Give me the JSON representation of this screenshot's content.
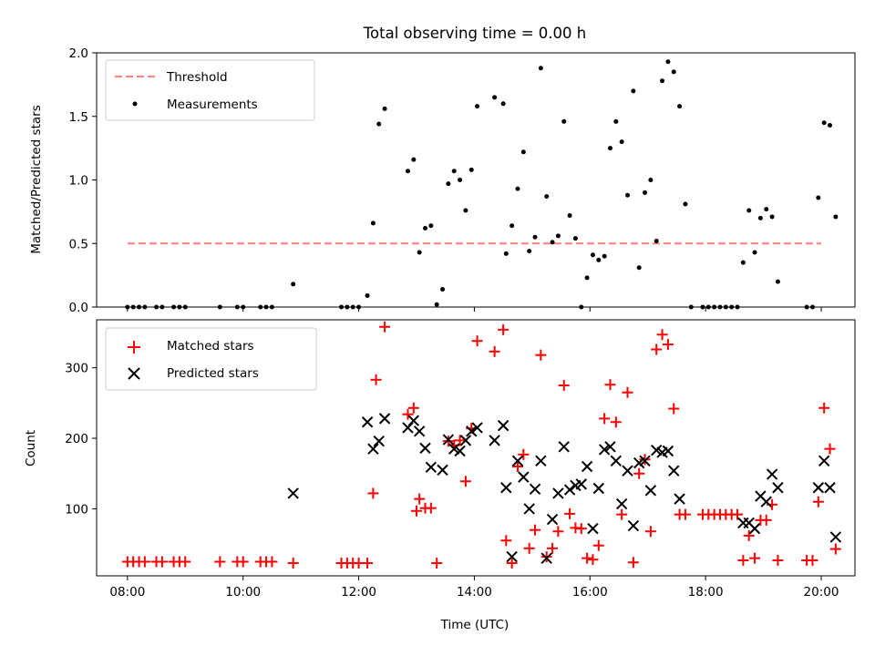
{
  "title": "Total observing time = 0.00 h",
  "colors": {
    "threshold": "#ff7f7f",
    "measurement": "#000000",
    "matched": "#ff0000",
    "predicted": "#000000"
  },
  "chart_data": [
    {
      "type": "scatter",
      "ylabel": "Matched/Predicted stars",
      "xlabel": "",
      "xlim": [
        "07:28",
        "20:35"
      ],
      "ylim": [
        0,
        2.0
      ],
      "yticks": [
        0.0,
        0.5,
        1.0,
        1.5,
        2.0
      ],
      "ytick_labels": [
        "0.0",
        "0.5",
        "1.0",
        "1.5",
        "2.0"
      ],
      "xticks": [
        "08:00",
        "10:00",
        "12:00",
        "14:00",
        "16:00",
        "18:00",
        "20:00"
      ],
      "show_xtick_labels": false,
      "legend": {
        "position": "top-left",
        "entries": [
          "Threshold",
          "Measurements"
        ]
      },
      "threshold": {
        "name": "Threshold",
        "y": 0.5,
        "x": [
          "08:00",
          "20:00"
        ],
        "style": "dashed"
      },
      "series": [
        {
          "name": "Measurements",
          "marker": "dot",
          "points": [
            [
              "08:00",
              0
            ],
            [
              "08:06",
              0
            ],
            [
              "08:12",
              0
            ],
            [
              "08:18",
              0
            ],
            [
              "08:30",
              0
            ],
            [
              "08:36",
              0
            ],
            [
              "08:48",
              0
            ],
            [
              "08:54",
              0
            ],
            [
              "09:00",
              0
            ],
            [
              "09:36",
              0
            ],
            [
              "09:54",
              0
            ],
            [
              "10:00",
              0
            ],
            [
              "10:18",
              0
            ],
            [
              "10:24",
              0
            ],
            [
              "10:30",
              0
            ],
            [
              "10:52",
              0.18
            ],
            [
              "11:42",
              0
            ],
            [
              "11:48",
              0
            ],
            [
              "11:54",
              0
            ],
            [
              "12:00",
              0
            ],
            [
              "12:09",
              0.09
            ],
            [
              "12:15",
              0.66
            ],
            [
              "12:21",
              1.44
            ],
            [
              "12:27",
              1.56
            ],
            [
              "12:51",
              1.07
            ],
            [
              "12:57",
              1.16
            ],
            [
              "13:03",
              0.43
            ],
            [
              "13:09",
              0.62
            ],
            [
              "13:15",
              0.64
            ],
            [
              "13:21",
              0.02
            ],
            [
              "13:27",
              0.14
            ],
            [
              "13:33",
              0.97
            ],
            [
              "13:39",
              1.07
            ],
            [
              "13:45",
              1.0
            ],
            [
              "13:51",
              0.76
            ],
            [
              "13:57",
              1.08
            ],
            [
              "14:03",
              1.58
            ],
            [
              "14:21",
              1.65
            ],
            [
              "14:30",
              1.6
            ],
            [
              "14:33",
              0.42
            ],
            [
              "14:39",
              0.64
            ],
            [
              "14:45",
              0.93
            ],
            [
              "14:51",
              1.22
            ],
            [
              "14:57",
              0.44
            ],
            [
              "15:03",
              0.55
            ],
            [
              "15:09",
              1.88
            ],
            [
              "15:15",
              0.87
            ],
            [
              "15:21",
              0.51
            ],
            [
              "15:27",
              0.56
            ],
            [
              "15:33",
              1.46
            ],
            [
              "15:39",
              0.72
            ],
            [
              "15:45",
              0.54
            ],
            [
              "15:51",
              0.0
            ],
            [
              "15:57",
              0.23
            ],
            [
              "16:03",
              0.41
            ],
            [
              "16:09",
              0.37
            ],
            [
              "16:15",
              0.4
            ],
            [
              "16:21",
              1.25
            ],
            [
              "16:27",
              1.46
            ],
            [
              "16:33",
              1.3
            ],
            [
              "16:39",
              0.88
            ],
            [
              "16:45",
              1.7
            ],
            [
              "16:51",
              0.31
            ],
            [
              "16:57",
              0.9
            ],
            [
              "17:03",
              1.0
            ],
            [
              "17:09",
              0.52
            ],
            [
              "17:15",
              1.78
            ],
            [
              "17:21",
              1.93
            ],
            [
              "17:27",
              1.85
            ],
            [
              "17:33",
              1.58
            ],
            [
              "17:39",
              0.81
            ],
            [
              "17:45",
              0.0
            ],
            [
              "17:57",
              0
            ],
            [
              "18:03",
              0
            ],
            [
              "18:09",
              0
            ],
            [
              "18:15",
              0
            ],
            [
              "18:21",
              0
            ],
            [
              "18:27",
              0
            ],
            [
              "18:33",
              0
            ],
            [
              "18:39",
              0.35
            ],
            [
              "18:45",
              0.76
            ],
            [
              "18:51",
              0.43
            ],
            [
              "18:57",
              0.7
            ],
            [
              "19:03",
              0.77
            ],
            [
              "19:09",
              0.71
            ],
            [
              "19:15",
              0.2
            ],
            [
              "19:45",
              0
            ],
            [
              "19:51",
              0
            ],
            [
              "19:57",
              0.86
            ],
            [
              "20:03",
              1.45
            ],
            [
              "20:09",
              1.43
            ],
            [
              "20:15",
              0.71
            ]
          ]
        }
      ]
    },
    {
      "type": "scatter",
      "ylabel": "Count",
      "xlabel": "Time (UTC)",
      "xlim": [
        "07:28",
        "20:35"
      ],
      "ylim": [
        5,
        368
      ],
      "yticks": [
        100,
        200,
        300
      ],
      "ytick_labels": [
        "100",
        "200",
        "300"
      ],
      "xticks": [
        "08:00",
        "10:00",
        "12:00",
        "14:00",
        "16:00",
        "18:00",
        "20:00"
      ],
      "xtick_labels": [
        "08:00",
        "10:00",
        "12:00",
        "14:00",
        "16:00",
        "18:00",
        "20:00"
      ],
      "legend": {
        "position": "top-left",
        "entries": [
          "Matched stars",
          "Predicted stars"
        ]
      },
      "series": [
        {
          "name": "Matched stars",
          "marker": "plus",
          "points": [
            [
              "08:00",
              25
            ],
            [
              "08:06",
              25
            ],
            [
              "08:12",
              25
            ],
            [
              "08:18",
              25
            ],
            [
              "08:30",
              25
            ],
            [
              "08:36",
              25
            ],
            [
              "08:48",
              25
            ],
            [
              "08:54",
              25
            ],
            [
              "09:00",
              25
            ],
            [
              "09:36",
              25
            ],
            [
              "09:54",
              25
            ],
            [
              "10:00",
              25
            ],
            [
              "10:18",
              25
            ],
            [
              "10:24",
              25
            ],
            [
              "10:30",
              25
            ],
            [
              "10:52",
              23
            ],
            [
              "11:42",
              23
            ],
            [
              "11:48",
              23
            ],
            [
              "11:54",
              23
            ],
            [
              "12:00",
              23
            ],
            [
              "12:09",
              23
            ],
            [
              "12:15",
              122
            ],
            [
              "12:18",
              283
            ],
            [
              "12:27",
              358
            ],
            [
              "12:51",
              234
            ],
            [
              "12:57",
              243
            ],
            [
              "13:00",
              97
            ],
            [
              "13:03",
              114
            ],
            [
              "13:09",
              101
            ],
            [
              "13:15",
              101
            ],
            [
              "13:21",
              23
            ],
            [
              "13:33",
              196
            ],
            [
              "13:39",
              190
            ],
            [
              "13:45",
              197
            ],
            [
              "13:51",
              139
            ],
            [
              "13:57",
              214
            ],
            [
              "14:03",
              338
            ],
            [
              "14:21",
              323
            ],
            [
              "14:30",
              354
            ],
            [
              "14:33",
              55
            ],
            [
              "14:39",
              23
            ],
            [
              "14:45",
              160
            ],
            [
              "14:51",
              177
            ],
            [
              "14:57",
              44
            ],
            [
              "15:03",
              70
            ],
            [
              "15:09",
              318
            ],
            [
              "15:15",
              32
            ],
            [
              "15:21",
              44
            ],
            [
              "15:27",
              68
            ],
            [
              "15:33",
              275
            ],
            [
              "15:39",
              93
            ],
            [
              "15:45",
              73
            ],
            [
              "15:51",
              72
            ],
            [
              "15:57",
              30
            ],
            [
              "16:03",
              28
            ],
            [
              "16:09",
              48
            ],
            [
              "16:15",
              228
            ],
            [
              "16:21",
              276
            ],
            [
              "16:27",
              223
            ],
            [
              "16:33",
              92
            ],
            [
              "16:39",
              265
            ],
            [
              "16:45",
              24
            ],
            [
              "16:51",
              150
            ],
            [
              "16:57",
              170
            ],
            [
              "17:03",
              68
            ],
            [
              "17:09",
              326
            ],
            [
              "17:15",
              347
            ],
            [
              "17:21",
              333
            ],
            [
              "17:27",
              242
            ],
            [
              "17:33",
              92
            ],
            [
              "17:39",
              92
            ],
            [
              "17:57",
              92
            ],
            [
              "18:03",
              92
            ],
            [
              "18:09",
              92
            ],
            [
              "18:15",
              92
            ],
            [
              "18:21",
              92
            ],
            [
              "18:27",
              92
            ],
            [
              "18:33",
              92
            ],
            [
              "18:39",
              27
            ],
            [
              "18:45",
              62
            ],
            [
              "18:51",
              30
            ],
            [
              "18:57",
              84
            ],
            [
              "19:03",
              84
            ],
            [
              "19:09",
              106
            ],
            [
              "19:15",
              27
            ],
            [
              "19:45",
              27
            ],
            [
              "19:51",
              27
            ],
            [
              "19:57",
              110
            ],
            [
              "20:03",
              243
            ],
            [
              "20:09",
              185
            ],
            [
              "20:15",
              43
            ]
          ]
        },
        {
          "name": "Predicted stars",
          "marker": "x",
          "points": [
            [
              "10:52",
              122
            ],
            [
              "12:09",
              223
            ],
            [
              "12:15",
              185
            ],
            [
              "12:21",
              196
            ],
            [
              "12:27",
              228
            ],
            [
              "12:51",
              215
            ],
            [
              "12:57",
              225
            ],
            [
              "13:03",
              210
            ],
            [
              "13:09",
              186
            ],
            [
              "13:15",
              159
            ],
            [
              "13:27",
              155
            ],
            [
              "13:33",
              198
            ],
            [
              "13:39",
              185
            ],
            [
              "13:45",
              182
            ],
            [
              "13:51",
              197
            ],
            [
              "13:57",
              210
            ],
            [
              "14:03",
              215
            ],
            [
              "14:21",
              197
            ],
            [
              "14:30",
              218
            ],
            [
              "14:33",
              130
            ],
            [
              "14:39",
              32
            ],
            [
              "14:45",
              168
            ],
            [
              "14:51",
              145
            ],
            [
              "14:57",
              100
            ],
            [
              "15:03",
              128
            ],
            [
              "15:09",
              168
            ],
            [
              "15:15",
              30
            ],
            [
              "15:21",
              85
            ],
            [
              "15:27",
              122
            ],
            [
              "15:33",
              188
            ],
            [
              "15:39",
              127
            ],
            [
              "15:45",
              133
            ],
            [
              "15:51",
              135
            ],
            [
              "15:57",
              160
            ],
            [
              "16:03",
              72
            ],
            [
              "16:09",
              129
            ],
            [
              "16:15",
              184
            ],
            [
              "16:21",
              188
            ],
            [
              "16:27",
              168
            ],
            [
              "16:33",
              107
            ],
            [
              "16:39",
              154
            ],
            [
              "16:45",
              76
            ],
            [
              "16:51",
              165
            ],
            [
              "16:57",
              168
            ],
            [
              "17:03",
              126
            ],
            [
              "17:09",
              183
            ],
            [
              "17:15",
              180
            ],
            [
              "17:21",
              182
            ],
            [
              "17:27",
              154
            ],
            [
              "17:33",
              114
            ],
            [
              "18:39",
              80
            ],
            [
              "18:45",
              80
            ],
            [
              "18:51",
              72
            ],
            [
              "18:57",
              118
            ],
            [
              "19:03",
              110
            ],
            [
              "19:09",
              149
            ],
            [
              "19:15",
              130
            ],
            [
              "19:57",
              130
            ],
            [
              "20:03",
              168
            ],
            [
              "20:09",
              130
            ],
            [
              "20:15",
              60
            ]
          ]
        }
      ]
    }
  ]
}
